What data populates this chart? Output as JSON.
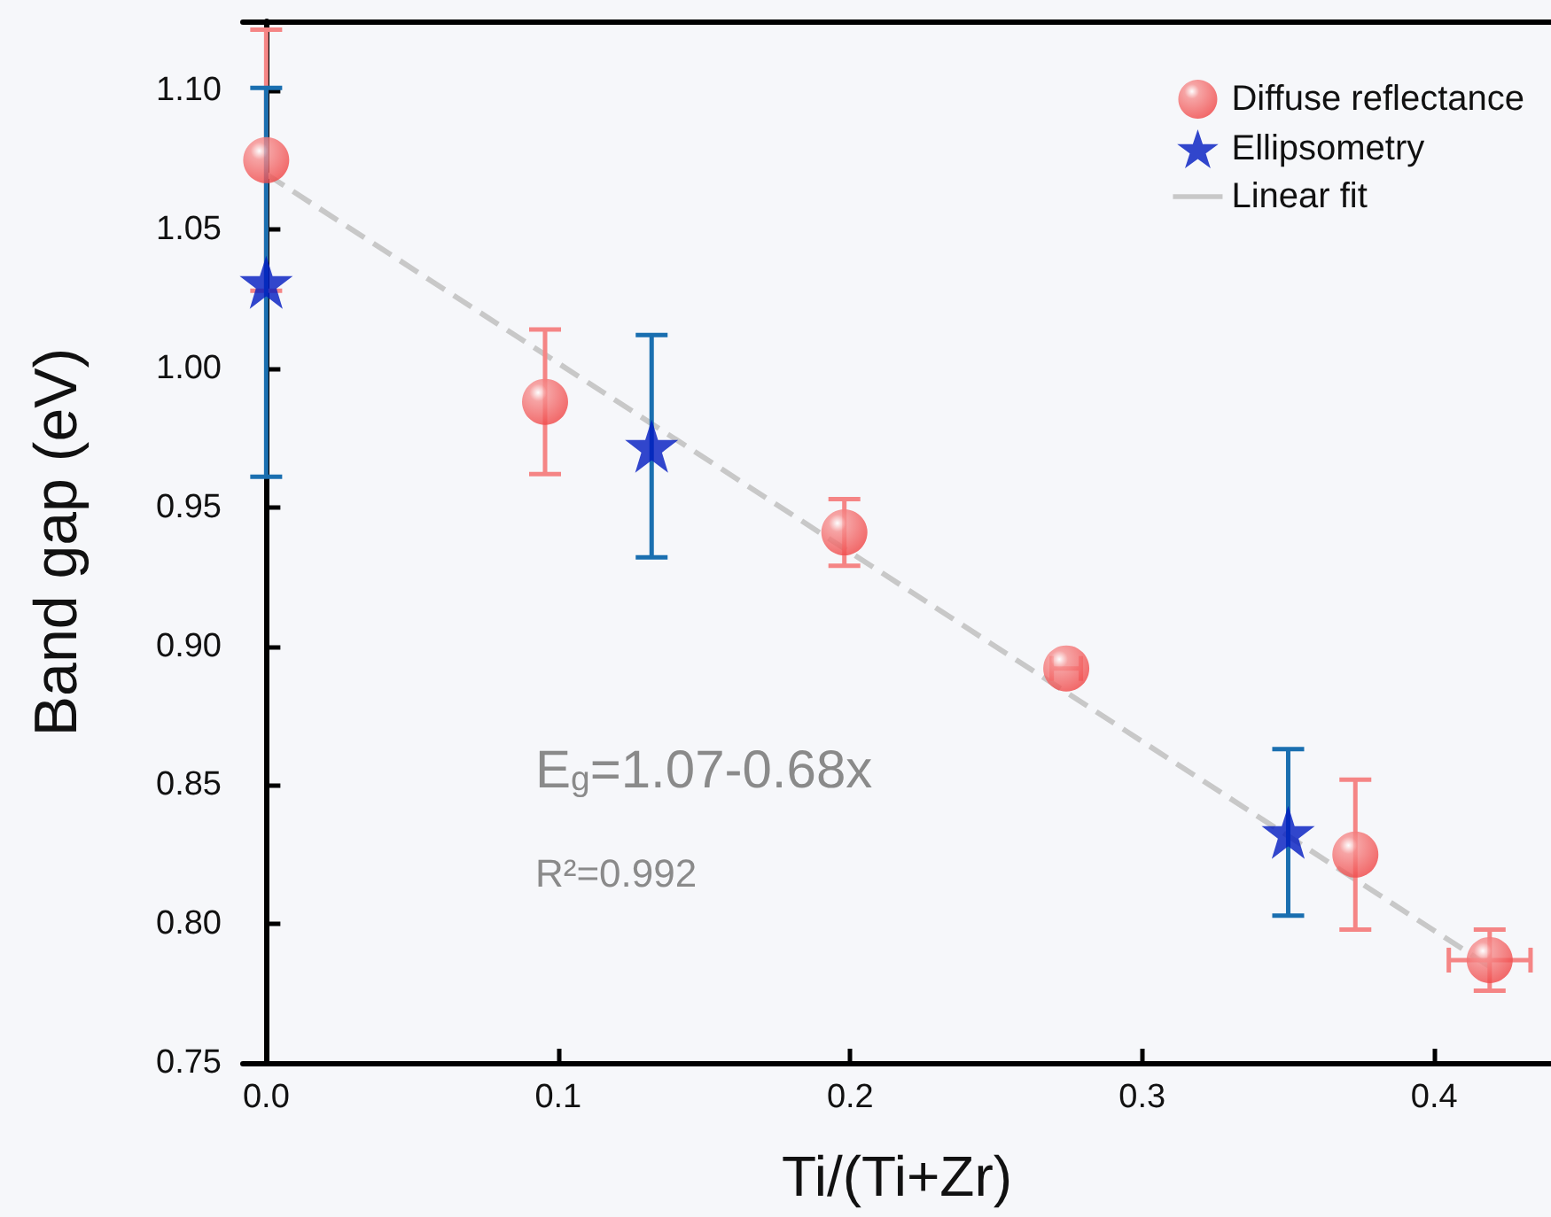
{
  "chart_data": {
    "type": "scatter",
    "xlabel": "Ti/(Ti+Zr)",
    "ylabel": "Band gap (eV)",
    "xlim": [
      -0.008,
      0.44
    ],
    "ylim": [
      0.75,
      1.125
    ],
    "xticks": [
      {
        "value": 0,
        "label": "0.0"
      },
      0.1,
      0.2,
      0.3,
      0.4
    ],
    "yticks": [
      0.75,
      {
        "value": 0.8,
        "label": "0.80"
      },
      0.85,
      {
        "value": 0.9,
        "label": "0.90"
      },
      0.95,
      {
        "value": 1.0,
        "label": "1.00"
      },
      1.05,
      {
        "value": 1.1,
        "label": "1.10"
      }
    ],
    "legend": "top right",
    "grid": false,
    "annotations": [
      "E$_{g}$=1.07-0.68x",
      "R²=0.992"
    ],
    "series": [
      {
        "name": "Diffuse reflectance",
        "marker": "circle",
        "color": "#f04444",
        "x": [
          0,
          0.0955,
          0.198,
          0.274,
          0.373,
          0.419
        ],
        "values": [
          1.075,
          0.988,
          0.941,
          0.892,
          0.825,
          0.787
        ],
        "errors": [
          0.047,
          0.026,
          0.012,
          null,
          0.027,
          0.011
        ],
        "xerrors": [
          null,
          null,
          null,
          0.005,
          null,
          0.014
        ]
      },
      {
        "name": "Ellipsometry",
        "marker": "star",
        "color": "#0019c0",
        "x": [
          0,
          0.132,
          0.35
        ],
        "values": [
          1.031,
          0.972,
          0.833
        ],
        "errors": [
          0.07,
          0.04,
          0.03
        ]
      },
      {
        "name": "Linear fit",
        "type": "line",
        "marker": "none",
        "line_style": "dashed",
        "color": "#c8c8c8",
        "x": [
          0,
          0.42
        ],
        "values": [
          1.07,
          0.784
        ]
      }
    ]
  }
}
